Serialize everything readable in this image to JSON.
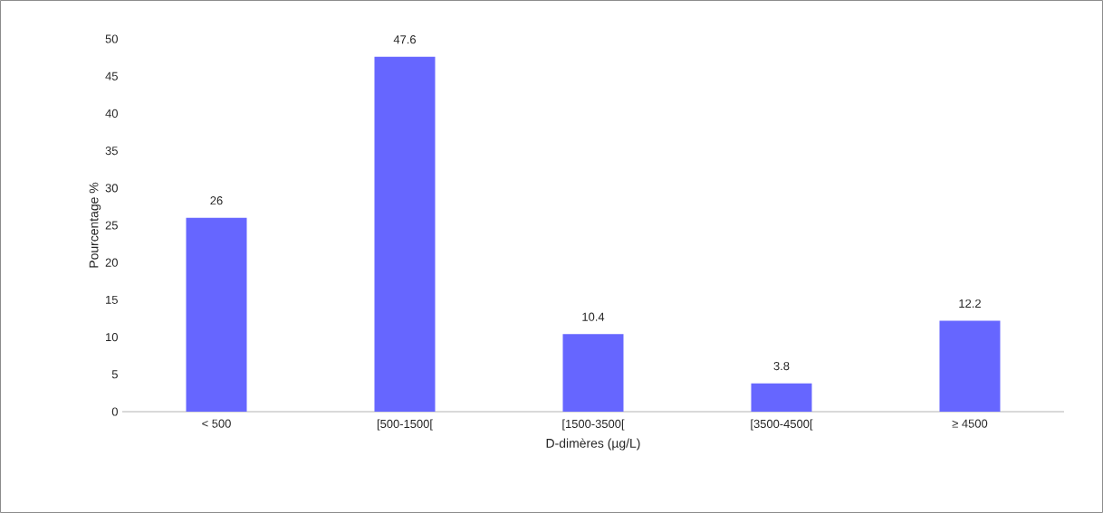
{
  "chart_data": {
    "type": "bar",
    "xlabel": "D-dimères (µg/L)",
    "ylabel": "Pourcentage %",
    "categories": [
      "< 500",
      "[500-1500[",
      "[1500-3500[",
      "[3500-4500[",
      "≥ 4500"
    ],
    "values": [
      26,
      47.6,
      10.4,
      3.8,
      12.2
    ],
    "color": "#6666ff",
    "ylim": [
      0,
      50
    ],
    "yticks": [
      0,
      5,
      10,
      15,
      20,
      25,
      30,
      35,
      40,
      45,
      50
    ],
    "grid": false,
    "data_labels": true
  }
}
